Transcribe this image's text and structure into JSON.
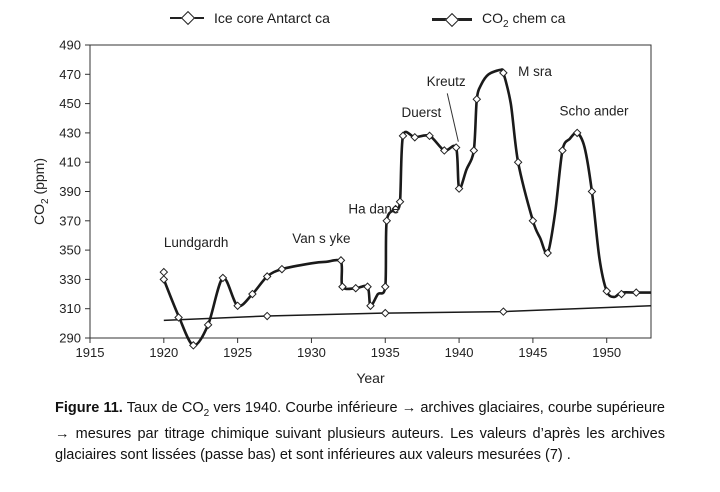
{
  "chart_data": {
    "type": "line",
    "xlabel": "Year",
    "ylabel_main": "CO",
    "ylabel_sub": "2",
    "ylabel_unit": " (ppm)",
    "xlim": [
      1915,
      1953
    ],
    "ylim": [
      290,
      490
    ],
    "xticks": [
      1915,
      1920,
      1925,
      1930,
      1935,
      1940,
      1945,
      1950
    ],
    "yticks": [
      290,
      310,
      330,
      350,
      370,
      390,
      410,
      430,
      450,
      470,
      490
    ],
    "grid": false,
    "legend_position": "top",
    "series": [
      {
        "name": "Ice core Antarct ca",
        "style": "thin",
        "x": [
          1920,
          1927,
          1935,
          1943,
          1953
        ],
        "y": [
          302,
          305,
          307,
          308,
          312
        ],
        "markers": [
          [
            1927,
            305
          ],
          [
            1935,
            307
          ],
          [
            1943,
            308
          ]
        ]
      },
      {
        "name": "CO₂ chem ca",
        "style": "thick",
        "x": [
          1920,
          1921,
          1922,
          1923,
          1924,
          1925,
          1926,
          1927,
          1928,
          1930,
          1931,
          1932,
          1932.1,
          1933,
          1933.8,
          1934,
          1934.5,
          1935,
          1935.1,
          1935.7,
          1936,
          1936.2,
          1937,
          1938,
          1939,
          1939.8,
          1940,
          1940.5,
          1941,
          1941.2,
          1941.5,
          1942,
          1942.8,
          1943,
          1943.5,
          1944,
          1945,
          1945.5,
          1946,
          1946.5,
          1947,
          1947.5,
          1948,
          1948.5,
          1949,
          1949.5,
          1950,
          1950.5,
          1951,
          1952,
          1953
        ],
        "y": [
          330,
          305,
          285,
          299,
          331,
          312,
          320,
          332,
          337,
          341,
          342,
          342,
          325,
          324,
          325,
          312,
          320,
          325,
          370,
          378,
          383,
          428,
          427,
          428,
          418,
          420,
          392,
          405,
          418,
          453,
          463,
          470,
          473,
          471,
          450,
          410,
          370,
          358,
          348,
          375,
          418,
          426,
          430,
          420,
          390,
          345,
          322,
          318,
          321,
          321,
          321
        ],
        "markers": [
          [
            1920,
            335
          ],
          [
            1920,
            330
          ],
          [
            1921,
            304
          ],
          [
            1922,
            285
          ],
          [
            1923,
            299
          ],
          [
            1924,
            331
          ],
          [
            1925,
            312
          ],
          [
            1926,
            320
          ],
          [
            1927,
            332
          ],
          [
            1928,
            337
          ],
          [
            1932,
            343
          ],
          [
            1932.1,
            325
          ],
          [
            1933,
            324
          ],
          [
            1933.8,
            325
          ],
          [
            1934,
            312
          ],
          [
            1935,
            325
          ],
          [
            1935.1,
            370
          ],
          [
            1935.7,
            378
          ],
          [
            1936,
            383
          ],
          [
            1936.2,
            428
          ],
          [
            1937,
            427
          ],
          [
            1938,
            428
          ],
          [
            1939,
            418
          ],
          [
            1939.8,
            420
          ],
          [
            1940,
            392
          ],
          [
            1941,
            418
          ],
          [
            1941.2,
            453
          ],
          [
            1943,
            471
          ],
          [
            1944,
            410
          ],
          [
            1945,
            370
          ],
          [
            1946,
            348
          ],
          [
            1947,
            418
          ],
          [
            1948,
            430
          ],
          [
            1949,
            390
          ],
          [
            1950,
            322
          ],
          [
            1951,
            320
          ],
          [
            1952,
            321
          ]
        ]
      }
    ],
    "annotations": [
      {
        "text": "Lundgardh",
        "x": 1920,
        "y": 352
      },
      {
        "text": "Van s yke",
        "x": 1928.7,
        "y": 355
      },
      {
        "text": "Ha dane",
        "x": 1932.5,
        "y": 375
      },
      {
        "text": "Duerst",
        "x": 1936.1,
        "y": 441
      },
      {
        "text": "Kreutz",
        "x": 1937.8,
        "y": 462
      },
      {
        "text": "M sra",
        "x": 1944,
        "y": 469
      },
      {
        "text": "Scho ander",
        "x": 1946.8,
        "y": 442
      }
    ]
  },
  "legend": {
    "item1": "Ice core Antarct ca",
    "item2_main": "CO",
    "item2_sub": "2",
    "item2_rest": " chem ca"
  },
  "caption": {
    "label": "Figure 11.",
    "t1": " Taux de CO",
    "sub": "2",
    "t2": " vers 1940. Courbe inférieure → archives glaciaires, courbe supérieure → mesures par titrage chimique suivant plusieurs auteurs. Les valeurs d’après les archives glaciaires sont lissées (passe bas) et sont inférieures aux valeurs mesurées  (7) ."
  }
}
